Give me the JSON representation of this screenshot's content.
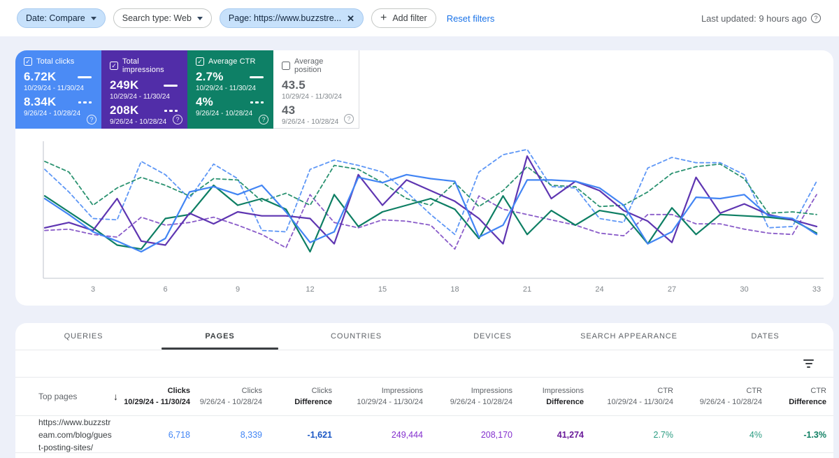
{
  "filters": {
    "date_chip_label": "Date: Compare",
    "search_type_chip_label": "Search type: Web",
    "page_chip_label": "Page: https://www.buzzstre...",
    "add_filter_label": "Add filter",
    "reset_filters_label": "Reset filters",
    "last_updated": "Last updated: 9 hours ago"
  },
  "cards": [
    {
      "label": "Total clicks",
      "checked": true,
      "bg": "#4b8bf5",
      "value_current": "6.72K",
      "range_current": "10/29/24 - 11/30/24",
      "value_previous": "8.34K",
      "range_previous": "9/26/24 - 10/28/24"
    },
    {
      "label": "Total impressions",
      "checked": true,
      "bg": "#512da8",
      "value_current": "249K",
      "range_current": "10/29/24 - 11/30/24",
      "value_previous": "208K",
      "range_previous": "9/26/24 - 10/28/24"
    },
    {
      "label": "Average CTR",
      "checked": true,
      "bg": "#0e8066",
      "value_current": "2.7%",
      "range_current": "10/29/24 - 11/30/24",
      "value_previous": "4%",
      "range_previous": "9/26/24 - 10/28/24"
    },
    {
      "label": "Average position",
      "checked": false,
      "bg": "#ffffff",
      "value_current": "43.5",
      "range_current": "10/29/24 - 11/30/24",
      "value_previous": "43",
      "range_previous": "9/26/24 - 10/28/24"
    }
  ],
  "chart_data": {
    "type": "line",
    "x_label": "day of period (1-33)",
    "x": [
      1,
      2,
      3,
      4,
      5,
      6,
      7,
      8,
      9,
      10,
      11,
      12,
      13,
      14,
      15,
      16,
      17,
      18,
      19,
      20,
      21,
      22,
      23,
      24,
      25,
      26,
      27,
      28,
      29,
      30,
      31,
      32,
      33
    ],
    "x_ticks": [
      3,
      6,
      9,
      12,
      15,
      18,
      21,
      24,
      27,
      30,
      33
    ],
    "y_axis": "unlabeled; values are relative height (0 = bottom of plot, 100 = top)",
    "legend": "shown via metric cards above the chart; solid = current period 10/29/24 - 11/30/24, dashed = previous period 9/26/24 - 10/28/24",
    "series": [
      {
        "id": "clicks-previous",
        "name": "Total clicks (9/26/24 - 10/28/24)",
        "style": "dashed",
        "color": "#5e97f6",
        "values": [
          82,
          65,
          45,
          44,
          88,
          78,
          60,
          86,
          75,
          36,
          35,
          82,
          89,
          85,
          80,
          65,
          48,
          33,
          80,
          93,
          97,
          69,
          68,
          45,
          42,
          83,
          91,
          87,
          87,
          78,
          38,
          39,
          73
        ]
      },
      {
        "id": "impressions-previous",
        "name": "Total impressions (9/26/24 - 10/28/24)",
        "style": "dashed",
        "color": "#8a5cc9",
        "values": [
          36,
          37,
          33,
          31,
          46,
          40,
          42,
          46,
          40,
          33,
          23,
          63,
          42,
          38,
          44,
          43,
          40,
          22,
          62,
          52,
          48,
          44,
          40,
          34,
          32,
          48,
          48,
          41,
          41,
          37,
          34,
          33,
          63
        ]
      },
      {
        "id": "ctr-previous",
        "name": "Average CTR (9/26/24 - 10/28/24)",
        "style": "dashed",
        "color": "#2a9270",
        "values": [
          88,
          80,
          55,
          68,
          76,
          70,
          62,
          75,
          74,
          58,
          64,
          55,
          85,
          82,
          72,
          60,
          55,
          72,
          54,
          66,
          84,
          70,
          69,
          54,
          55,
          65,
          79,
          84,
          86,
          75,
          49,
          50,
          48
        ]
      },
      {
        "id": "ctr-current",
        "name": "Average CTR (10/29/24 - 11/30/24)",
        "style": "solid",
        "color": "#0d7e63",
        "values": [
          62,
          50,
          38,
          25,
          22,
          45,
          48,
          70,
          55,
          60,
          52,
          20,
          63,
          39,
          50,
          55,
          60,
          52,
          30,
          62,
          33,
          51,
          40,
          51,
          48,
          26,
          53,
          33,
          48,
          47,
          46,
          44,
          34
        ]
      },
      {
        "id": "impressions-current",
        "name": "Total impressions (10/29/24 - 11/30/24)",
        "style": "solid",
        "color": "#5e35b1",
        "values": [
          38,
          42,
          36,
          60,
          28,
          25,
          49,
          41,
          50,
          47,
          47,
          45,
          26,
          78,
          55,
          74,
          66,
          58,
          45,
          26,
          92,
          60,
          73,
          66,
          51,
          43,
          27,
          76,
          49,
          56,
          48,
          44,
          39
        ]
      },
      {
        "id": "clicks-current",
        "name": "Total clicks (10/29/24 - 11/30/24)",
        "style": "solid",
        "color": "#4285f4",
        "values": [
          60,
          48,
          35,
          28,
          20,
          30,
          65,
          69,
          63,
          70,
          50,
          27,
          35,
          76,
          72,
          78,
          75,
          73,
          31,
          40,
          74,
          74,
          73,
          68,
          55,
          26,
          35,
          61,
          60,
          63,
          47,
          45,
          33
        ]
      }
    ]
  },
  "tabs": [
    {
      "label": "QUERIES"
    },
    {
      "label": "PAGES",
      "active": true
    },
    {
      "label": "COUNTRIES"
    },
    {
      "label": "DEVICES"
    },
    {
      "label": "SEARCH APPEARANCE"
    },
    {
      "label": "DATES"
    }
  ],
  "table": {
    "row_header": "Top pages",
    "headers": [
      {
        "line1": "Clicks",
        "line2": "10/29/24 - 11/30/24",
        "sorted": true
      },
      {
        "line1": "Clicks",
        "line2": "9/26/24 - 10/28/24"
      },
      {
        "line1": "Clicks",
        "line2": "Difference"
      },
      {
        "line1": "Impressions",
        "line2": "10/29/24 - 11/30/24"
      },
      {
        "line1": "Impressions",
        "line2": "9/26/24 - 10/28/24"
      },
      {
        "line1": "Impressions",
        "line2": "Difference"
      },
      {
        "line1": "CTR",
        "line2": "10/29/24 - 11/30/24"
      },
      {
        "line1": "CTR",
        "line2": "9/26/24 - 10/28/24"
      },
      {
        "line1": "CTR",
        "line2": "Difference"
      }
    ],
    "rows": [
      {
        "url": "https://www.buzzstream.com/blog/guest-posting-sites/",
        "cells": [
          {
            "text": "6,718",
            "color": "#4285f4"
          },
          {
            "text": "8,339",
            "color": "#4285f4"
          },
          {
            "text": "-1,621",
            "color": "#1a56c4"
          },
          {
            "text": "249,444",
            "color": "#8430ce"
          },
          {
            "text": "208,170",
            "color": "#8430ce"
          },
          {
            "text": "41,274",
            "color": "#6a1b9a"
          },
          {
            "text": "2.7%",
            "color": "#2b9c82"
          },
          {
            "text": "4%",
            "color": "#2b9c82"
          },
          {
            "text": "-1.3%",
            "color": "#0e7f62"
          }
        ]
      }
    ]
  }
}
